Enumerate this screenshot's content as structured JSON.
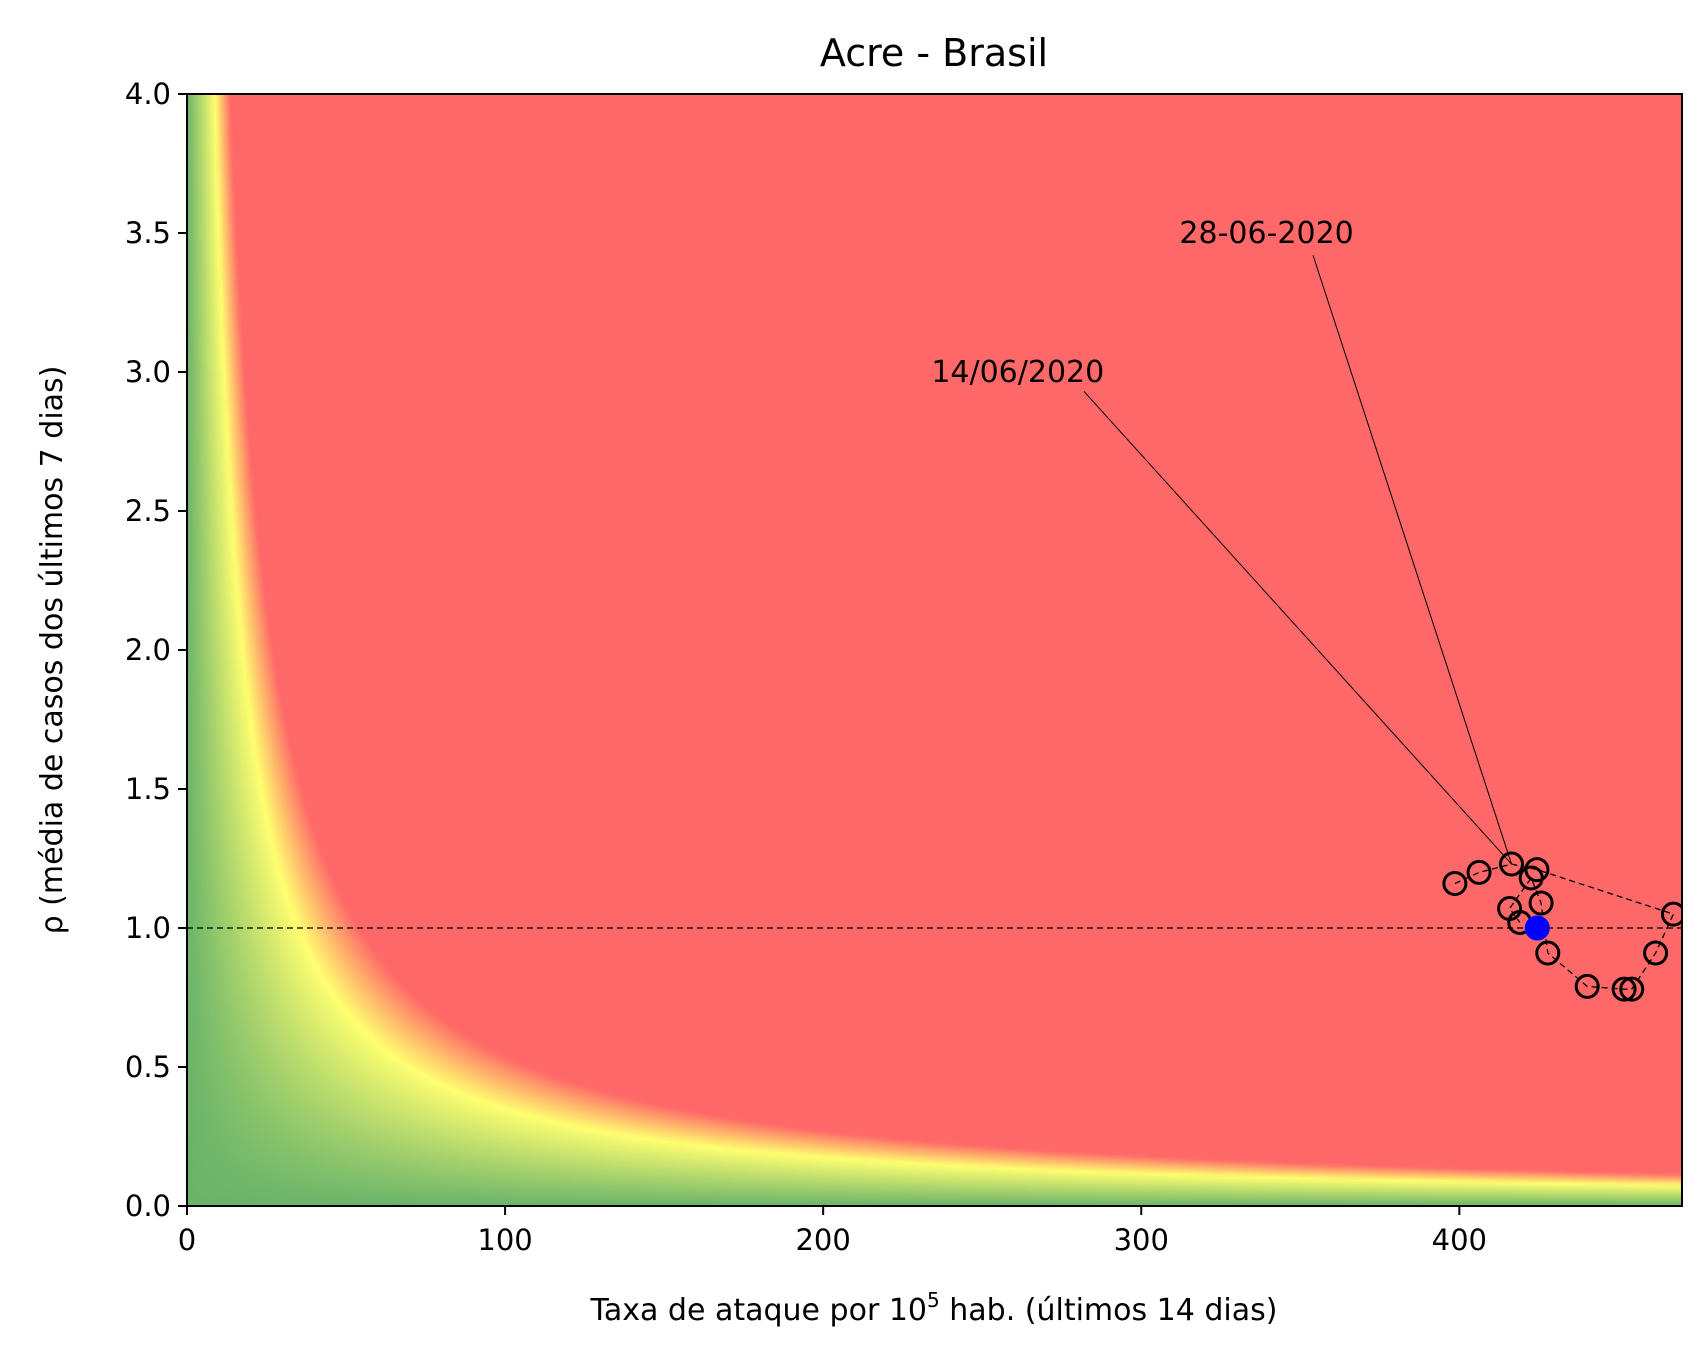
{
  "chart_data": {
    "type": "scatter",
    "title": "Acre - Brasil",
    "xlabel": "Taxa de ataque por 10",
    "xlabel_sup": "5",
    "xlabel_suffix": " hab. (últimos 14 dias)",
    "ylabel": "ρ (média de casos dos últimos 7 dias)",
    "xlim": [
      0,
      470
    ],
    "ylim": [
      0,
      4.0
    ],
    "x_ticks": [
      0,
      100,
      200,
      300,
      400
    ],
    "x_tick_labels": [
      "0",
      "100",
      "200",
      "300",
      "400"
    ],
    "y_ticks": [
      0,
      0.5,
      1.0,
      1.5,
      2.0,
      2.5,
      3.0,
      3.5,
      4.0
    ],
    "y_tick_labels": [
      "0.0",
      "0.5",
      "1.0",
      "1.5",
      "2.0",
      "2.5",
      "3.0",
      "3.5",
      "4.0"
    ],
    "reference_line_y": 1.0,
    "background": {
      "description_colors": {
        "low": "#6ab46a",
        "mid": "#ffff70",
        "high": "#ff6868"
      },
      "risk_product_yellow": 35
    },
    "series": [
      {
        "points": [
          {
            "x": 398.6,
            "y": 1.16
          },
          {
            "x": 406.2,
            "y": 1.2
          },
          {
            "x": 415.8,
            "y": 1.07
          },
          {
            "x": 419.0,
            "y": 1.02
          },
          {
            "x": 416.4,
            "y": 1.23
          },
          {
            "x": 422.6,
            "y": 1.18
          },
          {
            "x": 424.4,
            "y": 1.21
          },
          {
            "x": 425.7,
            "y": 1.09
          },
          {
            "x": 427.8,
            "y": 0.91
          },
          {
            "x": 440.2,
            "y": 0.79
          },
          {
            "x": 451.8,
            "y": 0.78
          },
          {
            "x": 454.2,
            "y": 0.78
          },
          {
            "x": 461.7,
            "y": 0.91
          },
          {
            "x": 467.3,
            "y": 1.05
          }
        ],
        "path_order": [
          0,
          1,
          4,
          6,
          13,
          12,
          11,
          10,
          9,
          8,
          7,
          5,
          2,
          3
        ],
        "marker_color": "#000000"
      }
    ],
    "current_point": {
      "x": 424.5,
      "y": 1.0,
      "color": "#0000ff"
    },
    "annotations": [
      {
        "text": "14/06/2020",
        "text_x": 234,
        "text_y": 3.0,
        "line_from": [
          282,
          2.93
        ],
        "line_to": [
          416.4,
          1.23
        ]
      },
      {
        "text": "28-06-2020",
        "text_x": 312,
        "text_y": 3.5,
        "line_from": [
          354,
          3.42
        ],
        "line_to": [
          416.4,
          1.23
        ]
      }
    ]
  }
}
